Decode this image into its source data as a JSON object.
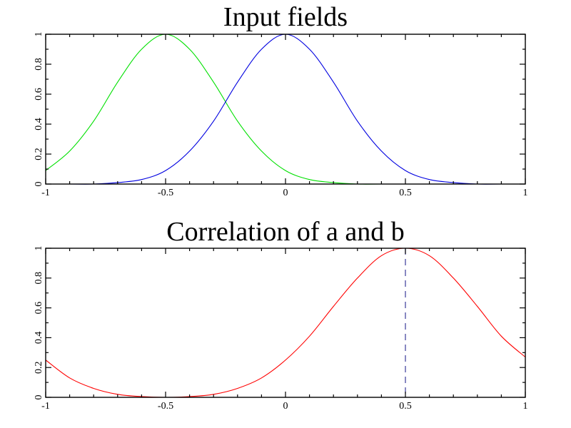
{
  "chart_data": [
    {
      "type": "line",
      "title": "Input fields",
      "xlabel": "",
      "ylabel": "",
      "xlim": [
        -1,
        1
      ],
      "ylim": [
        0,
        1
      ],
      "xticks": [
        "-1",
        "-0.5",
        "0",
        "0.5",
        "1"
      ],
      "xtick_values": [
        -1,
        -0.5,
        0,
        0.5,
        1
      ],
      "yticks": [
        "0",
        "0.2",
        "0.4",
        "0.6",
        "0.8",
        "1"
      ],
      "ytick_values": [
        0,
        0.2,
        0.4,
        0.6,
        0.8,
        1
      ],
      "grid": false,
      "series": [
        {
          "color": "#00e000",
          "x": [
            -1.0,
            -0.9,
            -0.8,
            -0.7,
            -0.6,
            -0.5,
            -0.4,
            -0.3,
            -0.2,
            -0.1,
            0.0,
            0.1,
            0.2,
            0.3,
            0.4,
            0.5,
            0.6,
            0.7,
            0.8,
            0.9,
            1.0
          ],
          "values": [
            0.09,
            0.22,
            0.42,
            0.68,
            0.9,
            1.0,
            0.9,
            0.68,
            0.42,
            0.22,
            0.09,
            0.03,
            0.01,
            0.0,
            0.0,
            0.0,
            0.0,
            0.0,
            0.0,
            0.0,
            0.0
          ]
        },
        {
          "color": "#0000e0",
          "x": [
            -1.0,
            -0.9,
            -0.8,
            -0.7,
            -0.6,
            -0.5,
            -0.4,
            -0.3,
            -0.2,
            -0.1,
            0.0,
            0.1,
            0.2,
            0.3,
            0.4,
            0.5,
            0.6,
            0.7,
            0.8,
            0.9,
            1.0
          ],
          "values": [
            0.0,
            0.0,
            0.0,
            0.01,
            0.03,
            0.09,
            0.22,
            0.42,
            0.68,
            0.9,
            1.0,
            0.9,
            0.68,
            0.42,
            0.22,
            0.09,
            0.03,
            0.01,
            0.0,
            0.0,
            0.0
          ]
        }
      ]
    },
    {
      "type": "line",
      "title": "Correlation of a and b",
      "xlabel": "",
      "ylabel": "",
      "xlim": [
        -1,
        1
      ],
      "ylim": [
        0,
        1
      ],
      "xticks": [
        "-1",
        "-0.5",
        "0",
        "0.5",
        "1"
      ],
      "xtick_values": [
        -1,
        -0.5,
        0,
        0.5,
        1
      ],
      "yticks": [
        "0",
        "0.2",
        "0.4",
        "0.6",
        "0.8",
        "1"
      ],
      "ytick_values": [
        0,
        0.2,
        0.4,
        0.6,
        0.8,
        1
      ],
      "grid": false,
      "series": [
        {
          "color": "#ff0000",
          "x": [
            -1.0,
            -0.9,
            -0.8,
            -0.7,
            -0.6,
            -0.5,
            -0.4,
            -0.3,
            -0.2,
            -0.1,
            0.0,
            0.1,
            0.2,
            0.3,
            0.4,
            0.5,
            0.6,
            0.7,
            0.8,
            0.9,
            1.0
          ],
          "values": [
            0.25,
            0.13,
            0.06,
            0.02,
            0.005,
            0.0,
            0.005,
            0.02,
            0.06,
            0.13,
            0.25,
            0.41,
            0.61,
            0.8,
            0.95,
            1.0,
            0.95,
            0.8,
            0.61,
            0.41,
            0.27
          ]
        }
      ],
      "marker_line": {
        "x": 0.5,
        "color": "#3a3a9a",
        "style": "dashed"
      }
    }
  ]
}
